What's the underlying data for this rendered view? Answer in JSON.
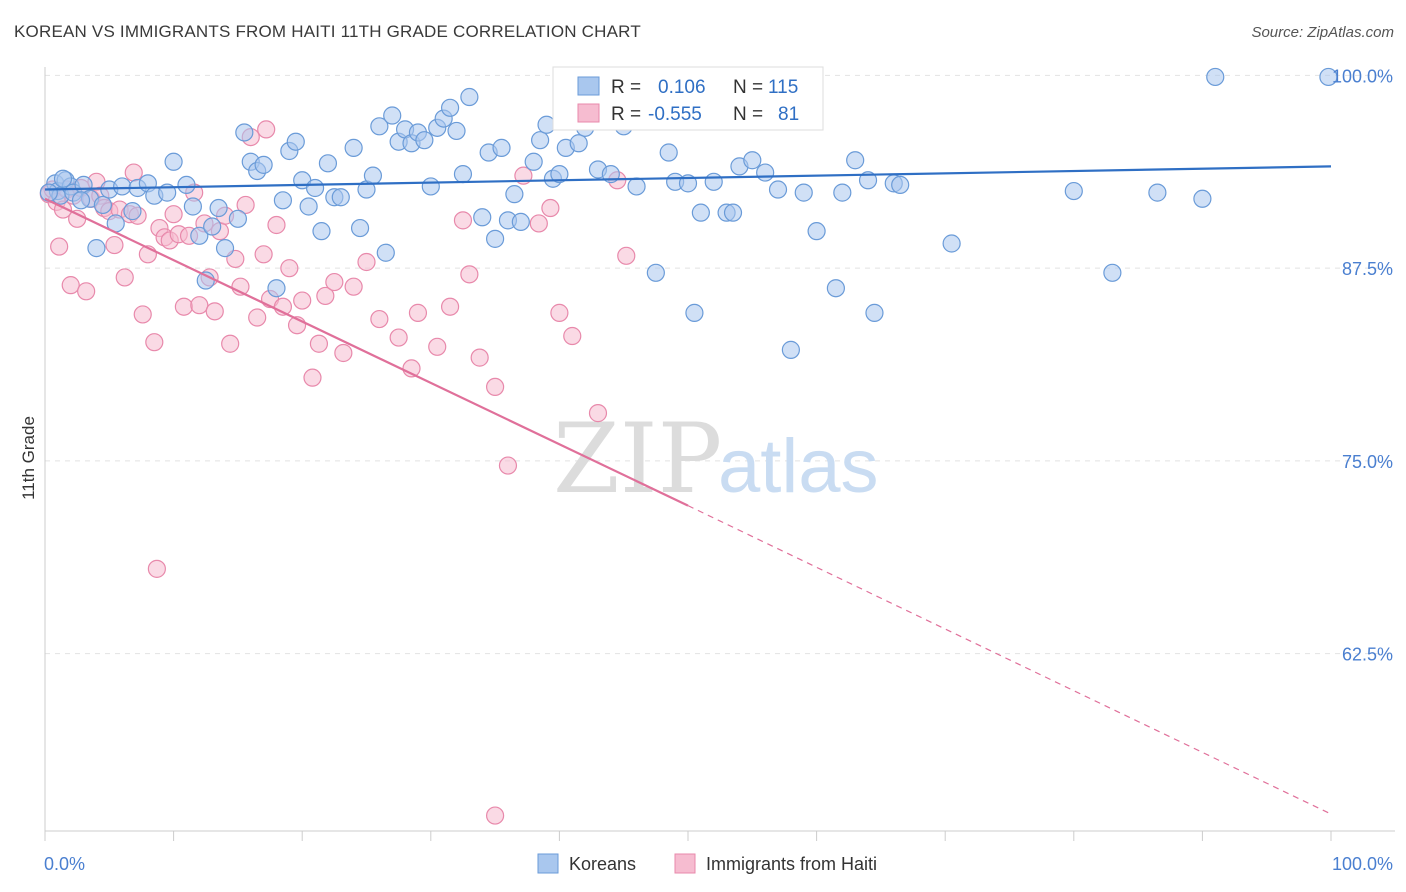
{
  "header": {
    "title": "KOREAN VS IMMIGRANTS FROM HAITI 11TH GRADE CORRELATION CHART",
    "source": "Source: ZipAtlas.com"
  },
  "watermark": {
    "zip": "ZIP",
    "atlas": "atlas"
  },
  "colors": {
    "blue_fill": "#a9c7ee",
    "blue_stroke": "#6a9bd8",
    "blue_line": "#2f6fc4",
    "pink_fill": "#f6bcd0",
    "pink_stroke": "#e889ab",
    "pink_line": "#e0709a",
    "axis_label": "#4a7fd0",
    "grid": "#e2e2e2"
  },
  "legend_box": {
    "rows": [
      {
        "r_label": "R =",
        "r_value": "0.106",
        "n_label": "N =",
        "n_value": "115"
      },
      {
        "r_label": "R =",
        "r_value": "-0.555",
        "n_label": "N =",
        "n_value": "81"
      }
    ]
  },
  "chart_data": {
    "type": "scatter",
    "title": "KOREAN VS IMMIGRANTS FROM HAITI 11TH GRADE CORRELATION CHART",
    "xlabel": "",
    "ylabel": "11th Grade",
    "xlim": [
      0,
      100
    ],
    "ylim": [
      51,
      101
    ],
    "x_tick_labels": [
      "0.0%",
      "100.0%"
    ],
    "y_ticks": [
      62.5,
      75.0,
      87.5,
      100.0
    ],
    "y_tick_labels": [
      "62.5%",
      "75.0%",
      "87.5%",
      "100.0%"
    ],
    "grid": true,
    "legend_position": "bottom-center",
    "series": [
      {
        "name": "Koreans",
        "r": 0.106,
        "n": 115,
        "trend": {
          "x": [
            0,
            100
          ],
          "y": [
            92.6,
            94.1
          ]
        },
        "points": [
          [
            0.8,
            93.0
          ],
          [
            1.0,
            92.5
          ],
          [
            1.2,
            92.2
          ],
          [
            1.6,
            93.2
          ],
          [
            2.0,
            92.8
          ],
          [
            2.2,
            92.4
          ],
          [
            3.0,
            92.9
          ],
          [
            3.5,
            92.0
          ],
          [
            4.0,
            88.8
          ],
          [
            4.5,
            91.6
          ],
          [
            5.0,
            92.6
          ],
          [
            5.5,
            90.4
          ],
          [
            6.0,
            92.8
          ],
          [
            6.8,
            91.2
          ],
          [
            7.2,
            92.7
          ],
          [
            8.0,
            93.0
          ],
          [
            8.5,
            92.2
          ],
          [
            9.5,
            92.4
          ],
          [
            10.0,
            94.4
          ],
          [
            11.0,
            92.9
          ],
          [
            11.5,
            91.5
          ],
          [
            12.0,
            89.6
          ],
          [
            12.5,
            86.7
          ],
          [
            13.0,
            90.2
          ],
          [
            13.5,
            91.4
          ],
          [
            14.0,
            88.8
          ],
          [
            15.0,
            90.7
          ],
          [
            15.5,
            96.3
          ],
          [
            16.0,
            94.4
          ],
          [
            16.5,
            93.8
          ],
          [
            17.0,
            94.2
          ],
          [
            18.0,
            86.2
          ],
          [
            18.5,
            91.9
          ],
          [
            19.0,
            95.1
          ],
          [
            19.5,
            95.7
          ],
          [
            20.0,
            93.2
          ],
          [
            20.5,
            91.5
          ],
          [
            21.0,
            92.7
          ],
          [
            21.5,
            89.9
          ],
          [
            22.0,
            94.3
          ],
          [
            22.5,
            92.1
          ],
          [
            23.0,
            92.1
          ],
          [
            24.0,
            95.3
          ],
          [
            24.5,
            90.1
          ],
          [
            25.0,
            92.6
          ],
          [
            25.5,
            93.5
          ],
          [
            26.0,
            96.7
          ],
          [
            26.5,
            88.5
          ],
          [
            27.0,
            97.4
          ],
          [
            27.5,
            95.7
          ],
          [
            28.0,
            96.5
          ],
          [
            28.5,
            95.6
          ],
          [
            29.0,
            96.3
          ],
          [
            29.5,
            95.8
          ],
          [
            30.0,
            92.8
          ],
          [
            30.5,
            96.6
          ],
          [
            31.0,
            97.2
          ],
          [
            31.5,
            97.9
          ],
          [
            32.0,
            96.4
          ],
          [
            32.5,
            93.6
          ],
          [
            33.0,
            98.6
          ],
          [
            34.0,
            90.8
          ],
          [
            34.5,
            95.0
          ],
          [
            35.0,
            89.4
          ],
          [
            35.5,
            95.3
          ],
          [
            36.0,
            90.6
          ],
          [
            36.5,
            92.3
          ],
          [
            37.0,
            90.5
          ],
          [
            38.0,
            94.4
          ],
          [
            38.5,
            95.8
          ],
          [
            39.0,
            96.8
          ],
          [
            39.5,
            93.3
          ],
          [
            40.0,
            93.6
          ],
          [
            40.5,
            95.3
          ],
          [
            41.5,
            95.6
          ],
          [
            42.0,
            96.6
          ],
          [
            43.0,
            93.9
          ],
          [
            44.0,
            93.6
          ],
          [
            44.0,
            98.7
          ],
          [
            45.0,
            96.7
          ],
          [
            46.0,
            92.8
          ],
          [
            46.5,
            98.8
          ],
          [
            47.5,
            87.2
          ],
          [
            48.5,
            95.0
          ],
          [
            49.0,
            93.1
          ],
          [
            50.0,
            93.0
          ],
          [
            50.5,
            84.6
          ],
          [
            51.0,
            91.1
          ],
          [
            52.0,
            93.1
          ],
          [
            53.0,
            91.1
          ],
          [
            53.5,
            91.1
          ],
          [
            54.0,
            94.1
          ],
          [
            55.0,
            94.5
          ],
          [
            56.0,
            93.7
          ],
          [
            57.0,
            92.6
          ],
          [
            58.0,
            82.2
          ],
          [
            59.0,
            92.4
          ],
          [
            60.0,
            89.9
          ],
          [
            61.5,
            86.2
          ],
          [
            62.0,
            92.4
          ],
          [
            63.0,
            94.5
          ],
          [
            64.0,
            93.2
          ],
          [
            64.5,
            84.6
          ],
          [
            66.0,
            93.0
          ],
          [
            66.5,
            92.9
          ],
          [
            70.5,
            89.1
          ],
          [
            80.0,
            92.5
          ],
          [
            83.0,
            87.2
          ],
          [
            86.5,
            92.4
          ],
          [
            90.0,
            92.0
          ],
          [
            91.0,
            99.9
          ],
          [
            99.8,
            99.9
          ],
          [
            0.3,
            92.4
          ],
          [
            1.4,
            93.3
          ],
          [
            2.8,
            91.9
          ]
        ]
      },
      {
        "name": "Immigrants from Haiti",
        "r": -0.555,
        "n": 81,
        "trend": {
          "x": [
            0,
            50,
            100
          ],
          "y": [
            92.0,
            72.1,
            52.1
          ],
          "solid_until": 50
        },
        "points": [
          [
            0.3,
            92.3
          ],
          [
            0.6,
            92.6
          ],
          [
            0.9,
            91.8
          ],
          [
            1.1,
            88.9
          ],
          [
            1.4,
            91.3
          ],
          [
            1.7,
            92.6
          ],
          [
            2.0,
            86.4
          ],
          [
            2.2,
            92.2
          ],
          [
            2.5,
            90.7
          ],
          [
            2.8,
            92.7
          ],
          [
            3.2,
            86.0
          ],
          [
            3.6,
            92.0
          ],
          [
            4.0,
            93.1
          ],
          [
            4.3,
            92.2
          ],
          [
            4.6,
            91.4
          ],
          [
            5.0,
            91.2
          ],
          [
            5.4,
            89.0
          ],
          [
            5.8,
            91.3
          ],
          [
            6.2,
            86.9
          ],
          [
            6.6,
            91.0
          ],
          [
            6.9,
            93.7
          ],
          [
            7.2,
            90.9
          ],
          [
            7.6,
            84.5
          ],
          [
            8.0,
            88.4
          ],
          [
            8.5,
            82.7
          ],
          [
            8.9,
            90.1
          ],
          [
            9.3,
            89.5
          ],
          [
            9.7,
            89.3
          ],
          [
            10.0,
            91.0
          ],
          [
            10.4,
            89.7
          ],
          [
            10.8,
            85.0
          ],
          [
            11.2,
            89.6
          ],
          [
            11.6,
            92.4
          ],
          [
            12.0,
            85.1
          ],
          [
            12.4,
            90.4
          ],
          [
            12.8,
            86.9
          ],
          [
            13.2,
            84.7
          ],
          [
            13.6,
            89.9
          ],
          [
            14.0,
            90.9
          ],
          [
            14.4,
            82.6
          ],
          [
            14.8,
            88.1
          ],
          [
            15.2,
            86.3
          ],
          [
            15.6,
            91.6
          ],
          [
            16.0,
            96.0
          ],
          [
            16.5,
            84.3
          ],
          [
            17.0,
            88.4
          ],
          [
            17.5,
            85.5
          ],
          [
            18.0,
            90.3
          ],
          [
            18.5,
            85.0
          ],
          [
            19.0,
            87.5
          ],
          [
            19.6,
            83.8
          ],
          [
            20.0,
            85.4
          ],
          [
            20.8,
            80.4
          ],
          [
            21.3,
            82.6
          ],
          [
            21.8,
            85.7
          ],
          [
            22.5,
            86.6
          ],
          [
            23.2,
            82.0
          ],
          [
            24.0,
            86.3
          ],
          [
            25.0,
            87.9
          ],
          [
            26.0,
            84.2
          ],
          [
            27.5,
            83.0
          ],
          [
            28.5,
            81.0
          ],
          [
            29.0,
            84.6
          ],
          [
            30.5,
            82.4
          ],
          [
            31.5,
            85.0
          ],
          [
            32.5,
            90.6
          ],
          [
            33.0,
            87.1
          ],
          [
            33.8,
            81.7
          ],
          [
            35.0,
            79.8
          ],
          [
            36.0,
            74.7
          ],
          [
            37.2,
            93.5
          ],
          [
            38.4,
            90.4
          ],
          [
            39.3,
            91.4
          ],
          [
            40.0,
            84.6
          ],
          [
            41.0,
            83.1
          ],
          [
            43.0,
            78.1
          ],
          [
            44.5,
            93.2
          ],
          [
            45.2,
            88.3
          ],
          [
            17.2,
            96.5
          ],
          [
            8.7,
            68.0
          ],
          [
            35.0,
            52.0
          ]
        ]
      }
    ]
  }
}
